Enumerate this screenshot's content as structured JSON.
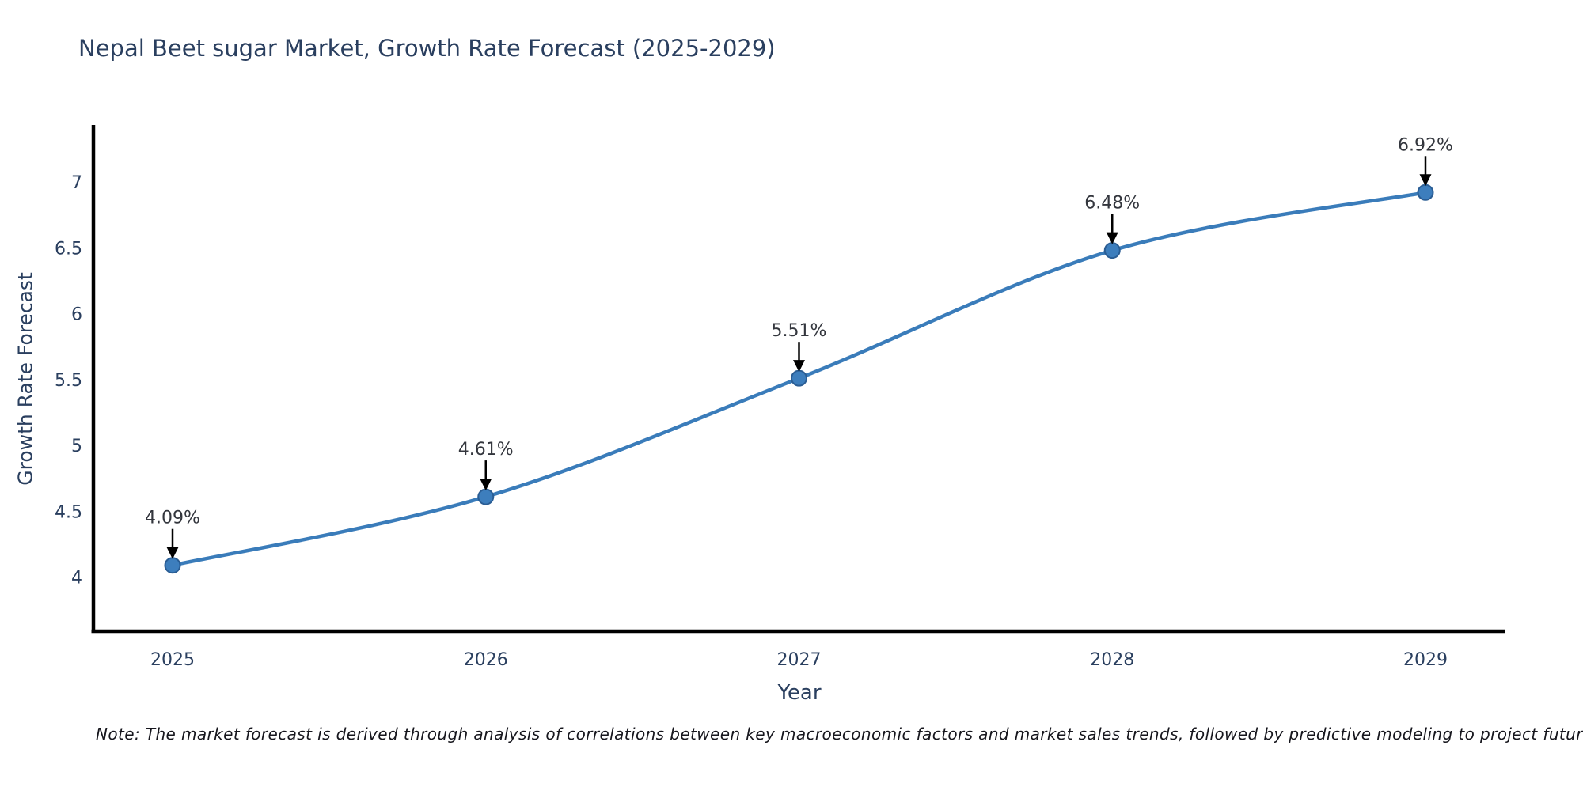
{
  "page": {
    "background": "#ffffff"
  },
  "header": {
    "title": "Nepal Beet sugar Market, Growth Rate Forecast (2025-2029)"
  },
  "note": {
    "text": "Note: The market forecast is derived through analysis of correlations between key macroeconomic factors and market sales trends, followed by predictive modeling to project future sales"
  },
  "chart_data": {
    "type": "line",
    "title": "Nepal Beet sugar Market, Growth Rate Forecast (2025-2029)",
    "categories": [
      "2025",
      "2026",
      "2027",
      "2028",
      "2029"
    ],
    "series": [
      {
        "name": "Growth Rate Forecast",
        "values": [
          4.09,
          4.61,
          5.51,
          6.48,
          6.92
        ]
      }
    ],
    "annotations": [
      "4.09%",
      "4.61%",
      "5.51%",
      "6.48%",
      "6.92%"
    ],
    "xlabel": "Year",
    "ylabel": "Growth Rate Forecast",
    "yticks": [
      4,
      4.5,
      5,
      5.5,
      6,
      6.5,
      7
    ],
    "ylim": [
      3.59,
      7.42
    ],
    "line_shape": "spline",
    "grid": false,
    "legend": "none",
    "colors": {
      "line": "#3a7cba",
      "marker": "#3d7ebd",
      "marker_edge": "#2a5d94",
      "arrow": "#000000",
      "axis": "#000000",
      "tick_text": "#2a3f5f",
      "annotation_text": "#33363d"
    }
  }
}
